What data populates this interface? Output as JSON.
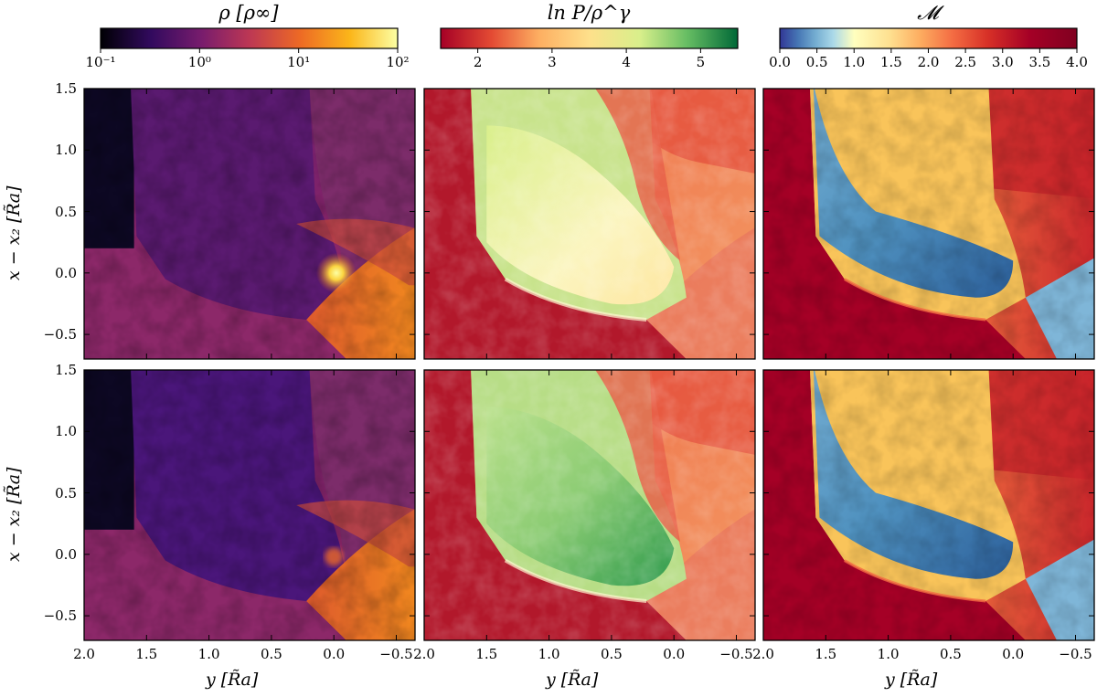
{
  "colorbars": [
    {
      "label": "ρ [ρ∞]",
      "cmap": "inferno",
      "scale": "log",
      "ticks": [
        "10⁻¹",
        "10⁰",
        "10¹",
        "10²"
      ],
      "range": [
        0.1,
        100
      ]
    },
    {
      "label": "ln P/ρ^γ",
      "cmap": "RdYlGn",
      "scale": "linear",
      "ticks": [
        "2",
        "3",
        "4",
        "5"
      ],
      "range": [
        1.5,
        5.5
      ]
    },
    {
      "label": "𝓜",
      "cmap": "RdYlBu_r",
      "scale": "linear",
      "ticks": [
        "0.0",
        "0.5",
        "1.0",
        "1.5",
        "2.0",
        "2.5",
        "3.0",
        "3.5",
        "4.0"
      ],
      "range": [
        0,
        4
      ]
    }
  ],
  "axes": {
    "ylabel": "x − x₂ [R̃a]",
    "xlabel": "y [R̃a]",
    "yticks": [
      "1.5",
      "1.0",
      "0.5",
      "0.0",
      "−0.5"
    ],
    "xticks": [
      "2.0",
      "1.5",
      "1.0",
      "0.5",
      "0.0",
      "−0.5"
    ]
  },
  "chart_data": {
    "type": "heatmap",
    "layout": "2 rows × 3 columns",
    "quantities": [
      "ρ [ρ∞]",
      "ln P/ρ^γ",
      "𝓜"
    ],
    "xlim": [
      2.0,
      -0.65
    ],
    "ylim": [
      -0.7,
      1.5
    ],
    "x_ticks": [
      2.0,
      1.5,
      1.0,
      0.5,
      0.0,
      -0.5
    ],
    "y_ticks": [
      1.5,
      1.0,
      0.5,
      0.0,
      -0.5
    ],
    "colors": {
      "density": [
        "#000004",
        "#320a5e",
        "#781c6d",
        "#bc3754",
        "#ed6925",
        "#fbb61a",
        "#fcffa4"
      ],
      "entropy": [
        "#a50026",
        "#e34a33",
        "#fdae61",
        "#fee08b",
        "#d9ef8b",
        "#66bd63",
        "#006837"
      ],
      "mach": [
        "#313695",
        "#4575b4",
        "#74add1",
        "#abd9e9",
        "#e0f3f8",
        "#ffffbf",
        "#fee090",
        "#fdae61",
        "#f46d43",
        "#d73027",
        "#a50026",
        "#800020"
      ]
    }
  }
}
